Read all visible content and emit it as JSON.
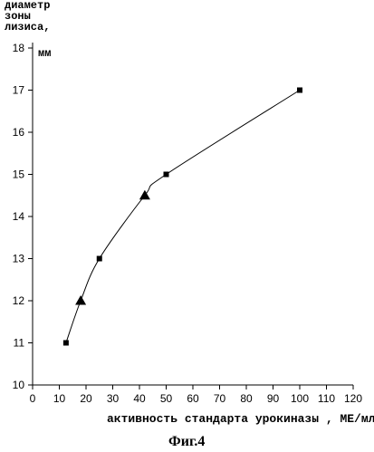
{
  "chart_data": {
    "type": "line",
    "ylabel_lines": [
      "диаметр",
      "зоны",
      "лизиса,"
    ],
    "yunit": "мм",
    "xlabel": "активность стандарта урокиназы , МЕ/мл",
    "caption": "Фиг.4",
    "xlim": [
      0,
      120
    ],
    "ylim": [
      10,
      18
    ],
    "x_ticks": [
      0,
      10,
      20,
      30,
      40,
      50,
      60,
      70,
      80,
      90,
      100,
      110,
      120
    ],
    "y_ticks": [
      10,
      11,
      12,
      13,
      14,
      15,
      16,
      17,
      18
    ],
    "grid": false,
    "series": [
      {
        "marker": "square",
        "x": [
          12.5,
          25,
          50,
          100
        ],
        "y": [
          11,
          13,
          15,
          17
        ]
      },
      {
        "marker": "triangle",
        "x": [
          18,
          42
        ],
        "y": [
          12,
          14.5
        ]
      }
    ],
    "curve": {
      "x": [
        12.5,
        18,
        25,
        42,
        50,
        100
      ],
      "y": [
        11,
        12,
        13,
        14.5,
        15,
        17
      ]
    }
  }
}
